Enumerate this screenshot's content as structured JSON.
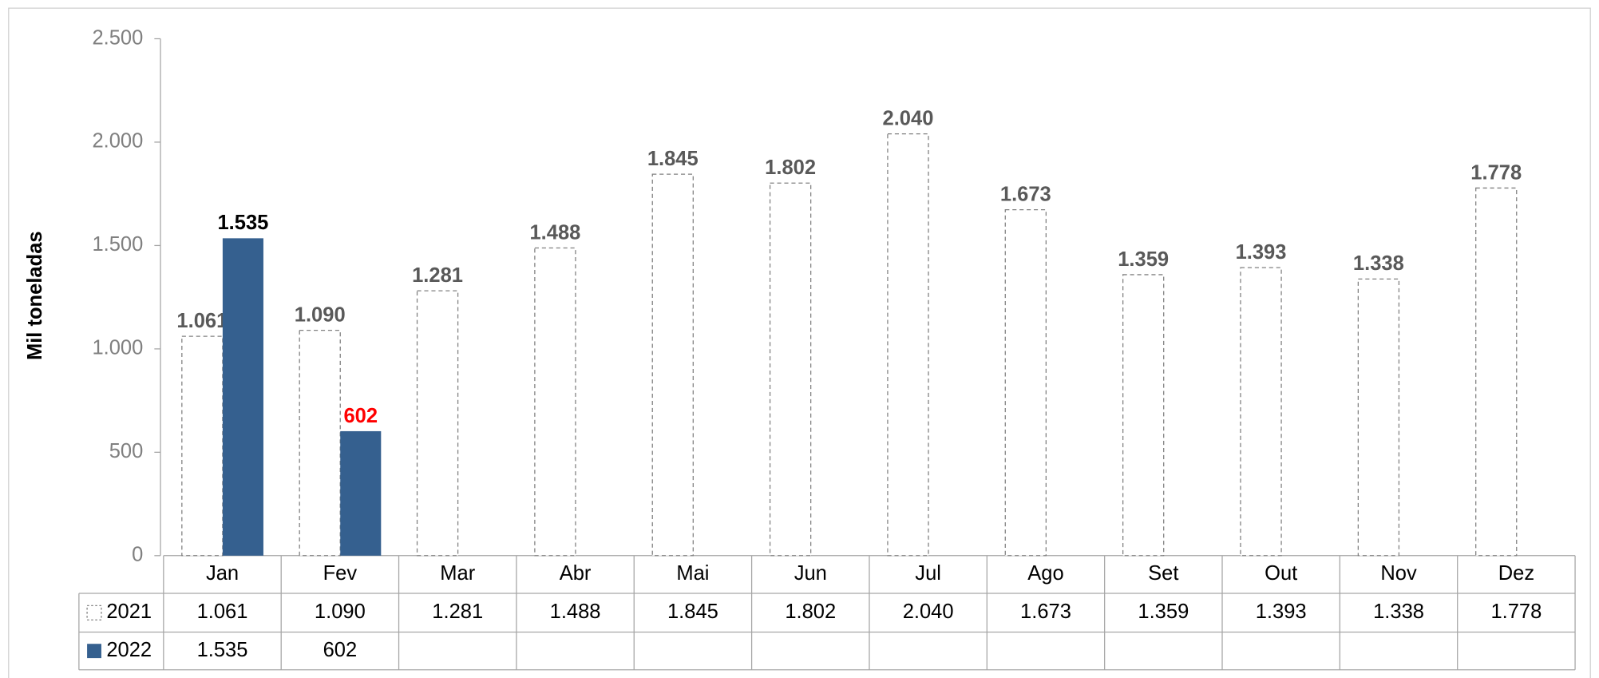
{
  "chart_data": {
    "type": "bar",
    "y_label": "Mil toneladas",
    "categories": [
      "Jan",
      "Fev",
      "Mar",
      "Abr",
      "Mai",
      "Jun",
      "Jul",
      "Ago",
      "Set",
      "Out",
      "Nov",
      "Dez"
    ],
    "series": [
      {
        "name": "2021",
        "color": "#808080",
        "style": "dashed-outline",
        "label_color": "#595959",
        "values": [
          1061,
          1090,
          1281,
          1488,
          1845,
          1802,
          2040,
          1673,
          1359,
          1393,
          1338,
          1778
        ],
        "value_labels": [
          "1.061",
          "1.090",
          "1.281",
          "1.488",
          "1.845",
          "1.802",
          "2.040",
          "1.673",
          "1.359",
          "1.393",
          "1.338",
          "1.778"
        ]
      },
      {
        "name": "2022",
        "color": "#35608f",
        "style": "solid",
        "label_colors": [
          "#000000",
          "#ff0000",
          null,
          null,
          null,
          null,
          null,
          null,
          null,
          null,
          null,
          null
        ],
        "values": [
          1535,
          602,
          null,
          null,
          null,
          null,
          null,
          null,
          null,
          null,
          null,
          null
        ],
        "value_labels": [
          "1.535",
          "602",
          null,
          null,
          null,
          null,
          null,
          null,
          null,
          null,
          null,
          null
        ]
      }
    ],
    "ylim": [
      0,
      2500
    ],
    "yticks": [
      0,
      500,
      {
        "value": 1000,
        "label": "1.000"
      },
      {
        "value": 1500,
        "label": "1.500"
      },
      {
        "value": 2000,
        "label": "2.000"
      },
      {
        "value": 2500,
        "label": "2.500"
      }
    ],
    "grid": false,
    "data_table": true
  }
}
